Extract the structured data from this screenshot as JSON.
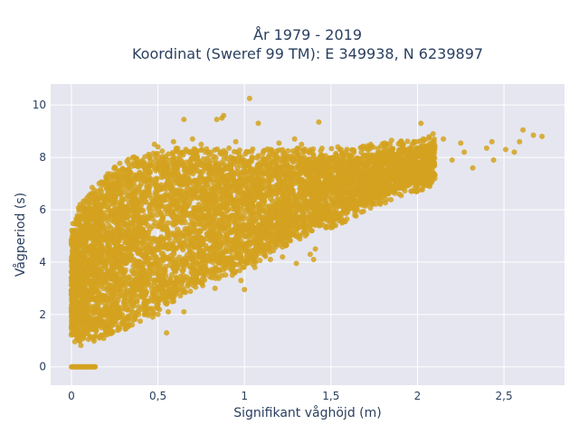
{
  "chart_data": {
    "type": "scatter",
    "title": "År 1979 - 2019",
    "subtitle": "Koordinat (Sweref 99 TM): E 349938, N 6239897",
    "xlabel": "Signifikant våghöjd (m)",
    "ylabel": "Vågperiod (s)",
    "xlim": [
      -0.12,
      2.85
    ],
    "ylim": [
      -0.7,
      10.8
    ],
    "x_ticks": [
      0,
      0.5,
      1,
      1.5,
      2,
      2.5
    ],
    "x_tick_labels": [
      "0",
      "0,5",
      "1",
      "1,5",
      "2",
      "2,5"
    ],
    "y_ticks": [
      0,
      2,
      4,
      6,
      8,
      10
    ],
    "y_tick_labels": [
      "0",
      "2",
      "4",
      "6",
      "8",
      "10"
    ],
    "grid": true,
    "legend": "none",
    "colors": {
      "marker": "#d4a21f",
      "plot_bg": "#e5e6ef",
      "grid": "#ffffff",
      "text": "#2a3f5f"
    },
    "series": [
      {
        "dense_band": [
          [
            0.0,
            1.2,
            5.0
          ],
          [
            0.05,
            1.1,
            5.9
          ],
          [
            0.1,
            1.2,
            6.2
          ],
          [
            0.15,
            1.3,
            6.5
          ],
          [
            0.2,
            1.4,
            7.0
          ],
          [
            0.3,
            1.7,
            7.6
          ],
          [
            0.4,
            2.0,
            7.8
          ],
          [
            0.5,
            2.4,
            7.9
          ],
          [
            0.6,
            2.8,
            8.0
          ],
          [
            0.7,
            3.2,
            8.0
          ],
          [
            0.8,
            3.5,
            8.0
          ],
          [
            0.9,
            3.8,
            8.0
          ],
          [
            1.0,
            4.0,
            8.0
          ],
          [
            1.1,
            4.4,
            8.0
          ],
          [
            1.2,
            4.8,
            8.0
          ],
          [
            1.3,
            5.1,
            8.0
          ],
          [
            1.4,
            5.4,
            8.0
          ],
          [
            1.5,
            5.6,
            8.0
          ],
          [
            1.6,
            5.9,
            8.0
          ],
          [
            1.7,
            6.2,
            8.1
          ],
          [
            1.8,
            6.5,
            8.2
          ],
          [
            1.9,
            6.8,
            8.3
          ],
          [
            2.0,
            7.0,
            8.4
          ],
          [
            2.1,
            7.2,
            8.5
          ]
        ],
        "outliers": [
          [
            1.03,
            10.25
          ],
          [
            0.65,
            9.45
          ],
          [
            0.88,
            9.6
          ],
          [
            0.87,
            9.5
          ],
          [
            0.84,
            9.45
          ],
          [
            1.08,
            9.3
          ],
          [
            1.43,
            9.35
          ],
          [
            2.02,
            9.3
          ],
          [
            2.61,
            9.05
          ],
          [
            2.72,
            8.8
          ],
          [
            2.67,
            8.85
          ],
          [
            2.59,
            8.6
          ],
          [
            2.51,
            8.3
          ],
          [
            2.4,
            8.35
          ],
          [
            2.44,
            7.9
          ],
          [
            2.56,
            8.2
          ],
          [
            2.43,
            8.6
          ],
          [
            2.25,
            8.55
          ],
          [
            2.15,
            8.7
          ],
          [
            2.09,
            8.9
          ],
          [
            2.0,
            8.6
          ],
          [
            1.85,
            8.65
          ],
          [
            1.81,
            8.55
          ],
          [
            1.79,
            8.15
          ],
          [
            1.61,
            7.55
          ],
          [
            1.57,
            6.6
          ],
          [
            1.36,
            7.0
          ],
          [
            1.43,
            6.2
          ],
          [
            1.39,
            5.2
          ],
          [
            1.41,
            4.5
          ],
          [
            1.38,
            4.3
          ],
          [
            1.0,
            2.95
          ],
          [
            0.83,
            3.0
          ],
          [
            0.65,
            2.1
          ],
          [
            0.56,
            2.1
          ],
          [
            0.55,
            1.3
          ],
          [
            0.5,
            2.0
          ],
          [
            0.47,
            1.9
          ],
          [
            0.33,
            1.9
          ],
          [
            0.28,
            2.0
          ],
          [
            0.12,
            1.45
          ],
          [
            0.93,
            3.5
          ],
          [
            1.15,
            4.1
          ],
          [
            1.22,
            4.2
          ],
          [
            0.5,
            8.4
          ],
          [
            0.48,
            8.5
          ],
          [
            0.59,
            8.6
          ],
          [
            0.7,
            8.7
          ],
          [
            0.75,
            8.5
          ],
          [
            0.95,
            8.6
          ],
          [
            1.2,
            8.55
          ],
          [
            1.33,
            8.5
          ],
          [
            1.54,
            8.4
          ],
          [
            1.73,
            8.5
          ],
          [
            1.29,
            8.7
          ],
          [
            0.18,
            6.5
          ],
          [
            0.12,
            6.85
          ],
          [
            0.09,
            6.0
          ],
          [
            0.27,
            7.0
          ],
          [
            0.16,
            7.0
          ],
          [
            1.8,
            7.55
          ],
          [
            1.72,
            7.2
          ],
          [
            1.66,
            6.9
          ],
          [
            1.95,
            7.7
          ],
          [
            2.2,
            7.9
          ],
          [
            2.27,
            8.2
          ],
          [
            2.32,
            7.6
          ],
          [
            1.46,
            6.0
          ],
          [
            1.29,
            5.8
          ],
          [
            1.25,
            4.9
          ],
          [
            1.11,
            4.3
          ],
          [
            1.06,
            3.8
          ],
          [
            1.3,
            3.95
          ],
          [
            1.4,
            4.1
          ],
          [
            0.98,
            3.3
          ]
        ],
        "zero_row": {
          "x_range": [
            0.0,
            0.14
          ],
          "y": 0
        }
      }
    ]
  }
}
